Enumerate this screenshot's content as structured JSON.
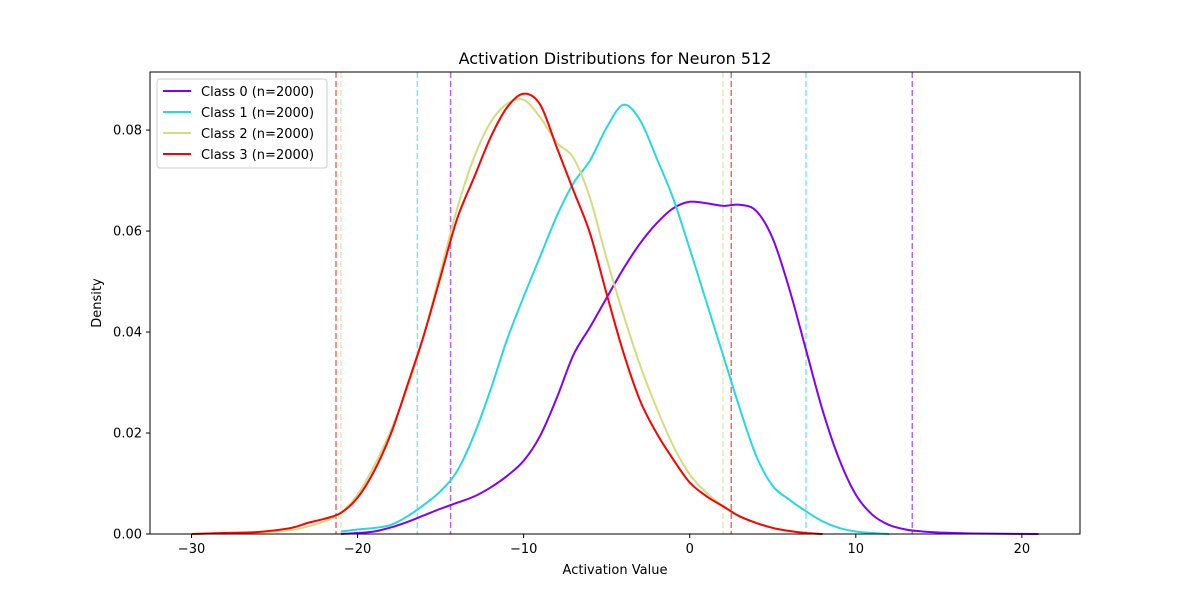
{
  "chart_data": {
    "type": "line",
    "title": "Activation Distributions for Neuron 512",
    "xlabel": "Activation Value",
    "ylabel": "Density",
    "xlim": [
      -32.5,
      23.5
    ],
    "ylim": [
      0,
      0.0915
    ],
    "xticks": [
      -30,
      -20,
      -10,
      0,
      10,
      20
    ],
    "yticks": [
      0.0,
      0.02,
      0.04,
      0.06,
      0.08
    ],
    "ytick_labels": [
      "0.00",
      "0.02",
      "0.04",
      "0.06",
      "0.08"
    ],
    "grid": false,
    "legend_position": "top-left",
    "series": [
      {
        "name": "Class 0 (n=2000)",
        "color": "#8000ff",
        "vlines": [
          -14.4,
          13.4
        ],
        "points": [
          [
            -21,
            0.0
          ],
          [
            -20,
            0.0002
          ],
          [
            -19,
            0.0005
          ],
          [
            -18,
            0.0013
          ],
          [
            -17,
            0.0024
          ],
          [
            -16,
            0.0037
          ],
          [
            -15,
            0.005
          ],
          [
            -14,
            0.0062
          ],
          [
            -13,
            0.0074
          ],
          [
            -12,
            0.0092
          ],
          [
            -11,
            0.0115
          ],
          [
            -10,
            0.0145
          ],
          [
            -9,
            0.0195
          ],
          [
            -8,
            0.027
          ],
          [
            -7,
            0.0355
          ],
          [
            -6,
            0.041
          ],
          [
            -5,
            0.0468
          ],
          [
            -4,
            0.0525
          ],
          [
            -3,
            0.0575
          ],
          [
            -2,
            0.0615
          ],
          [
            -1,
            0.0645
          ],
          [
            0,
            0.0658
          ],
          [
            1,
            0.0655
          ],
          [
            2,
            0.065
          ],
          [
            3,
            0.0652
          ],
          [
            4,
            0.064
          ],
          [
            5,
            0.0585
          ],
          [
            6,
            0.0485
          ],
          [
            7,
            0.0365
          ],
          [
            8,
            0.0245
          ],
          [
            9,
            0.0148
          ],
          [
            10,
            0.0078
          ],
          [
            11,
            0.0038
          ],
          [
            12,
            0.0018
          ],
          [
            13,
            0.0009
          ],
          [
            14,
            0.0005
          ],
          [
            15,
            0.0003
          ],
          [
            17,
            0.0001
          ],
          [
            21,
            0.0
          ]
        ]
      },
      {
        "name": "Class 1 (n=2000)",
        "color": "#26d9e0",
        "vlines": [
          -16.4,
          7.0
        ],
        "points": [
          [
            -21,
            0.0005
          ],
          [
            -20,
            0.0009
          ],
          [
            -19,
            0.0012
          ],
          [
            -18,
            0.0018
          ],
          [
            -17,
            0.0035
          ],
          [
            -16,
            0.0058
          ],
          [
            -15,
            0.0085
          ],
          [
            -14,
            0.0125
          ],
          [
            -13,
            0.0195
          ],
          [
            -12,
            0.0285
          ],
          [
            -11,
            0.0385
          ],
          [
            -10,
            0.047
          ],
          [
            -9,
            0.055
          ],
          [
            -8,
            0.063
          ],
          [
            -7,
            0.0695
          ],
          [
            -6,
            0.074
          ],
          [
            -5,
            0.0805
          ],
          [
            -4,
            0.085
          ],
          [
            -3,
            0.082
          ],
          [
            -2,
            0.0745
          ],
          [
            -1,
            0.0665
          ],
          [
            0,
            0.0565
          ],
          [
            1,
            0.046
          ],
          [
            2,
            0.0355
          ],
          [
            3,
            0.025
          ],
          [
            4,
            0.0155
          ],
          [
            5,
            0.0095
          ],
          [
            6,
            0.0068
          ],
          [
            7,
            0.0045
          ],
          [
            8,
            0.0025
          ],
          [
            9,
            0.0012
          ],
          [
            10,
            0.0005
          ],
          [
            11,
            0.0002
          ],
          [
            12,
            0.0
          ]
        ]
      },
      {
        "name": "Class 2 (n=2000)",
        "color": "#d4dc7f",
        "vlines": [
          -21.0,
          2.0
        ],
        "points": [
          [
            -30,
            0.0
          ],
          [
            -28,
            0.0002
          ],
          [
            -26,
            0.0003
          ],
          [
            -24,
            0.0008
          ],
          [
            -23,
            0.0015
          ],
          [
            -22,
            0.0025
          ],
          [
            -21,
            0.0042
          ],
          [
            -20,
            0.0078
          ],
          [
            -19,
            0.0135
          ],
          [
            -18,
            0.0205
          ],
          [
            -17,
            0.029
          ],
          [
            -16,
            0.0395
          ],
          [
            -15,
            0.052
          ],
          [
            -14,
            0.0645
          ],
          [
            -13,
            0.0745
          ],
          [
            -12,
            0.0815
          ],
          [
            -11,
            0.0852
          ],
          [
            -10,
            0.086
          ],
          [
            -9,
            0.0825
          ],
          [
            -8,
            0.0775
          ],
          [
            -7,
            0.0745
          ],
          [
            -6,
            0.0665
          ],
          [
            -5,
            0.0545
          ],
          [
            -4,
            0.0435
          ],
          [
            -3,
            0.0335
          ],
          [
            -2,
            0.025
          ],
          [
            -1,
            0.0175
          ],
          [
            0,
            0.0118
          ],
          [
            1,
            0.0082
          ],
          [
            2,
            0.0055
          ],
          [
            3,
            0.0035
          ],
          [
            4,
            0.0022
          ],
          [
            5,
            0.0012
          ],
          [
            6,
            0.0006
          ],
          [
            7,
            0.0002
          ],
          [
            8,
            0.0
          ]
        ]
      },
      {
        "name": "Class 3 (n=2000)",
        "color": "#ff0000",
        "vlines": [
          -21.3,
          2.5
        ],
        "points": [
          [
            -30,
            0.0
          ],
          [
            -28,
            0.0002
          ],
          [
            -26,
            0.0004
          ],
          [
            -24,
            0.0012
          ],
          [
            -23,
            0.0022
          ],
          [
            -22,
            0.003
          ],
          [
            -21,
            0.0042
          ],
          [
            -20,
            0.0072
          ],
          [
            -19,
            0.0125
          ],
          [
            -18,
            0.0198
          ],
          [
            -17,
            0.0295
          ],
          [
            -16,
            0.0395
          ],
          [
            -15,
            0.051
          ],
          [
            -14,
            0.0625
          ],
          [
            -13,
            0.0705
          ],
          [
            -12,
            0.0785
          ],
          [
            -11,
            0.0845
          ],
          [
            -10,
            0.0872
          ],
          [
            -9,
            0.085
          ],
          [
            -8,
            0.0765
          ],
          [
            -7,
            0.068
          ],
          [
            -6,
            0.0595
          ],
          [
            -5,
            0.0475
          ],
          [
            -4,
            0.036
          ],
          [
            -3,
            0.0265
          ],
          [
            -2,
            0.02
          ],
          [
            -1,
            0.0148
          ],
          [
            0,
            0.0102
          ],
          [
            1,
            0.0075
          ],
          [
            2,
            0.0055
          ],
          [
            3,
            0.0035
          ],
          [
            4,
            0.0022
          ],
          [
            5,
            0.0012
          ],
          [
            6,
            0.0006
          ],
          [
            7,
            0.0002
          ],
          [
            8,
            0.0
          ]
        ]
      }
    ]
  }
}
